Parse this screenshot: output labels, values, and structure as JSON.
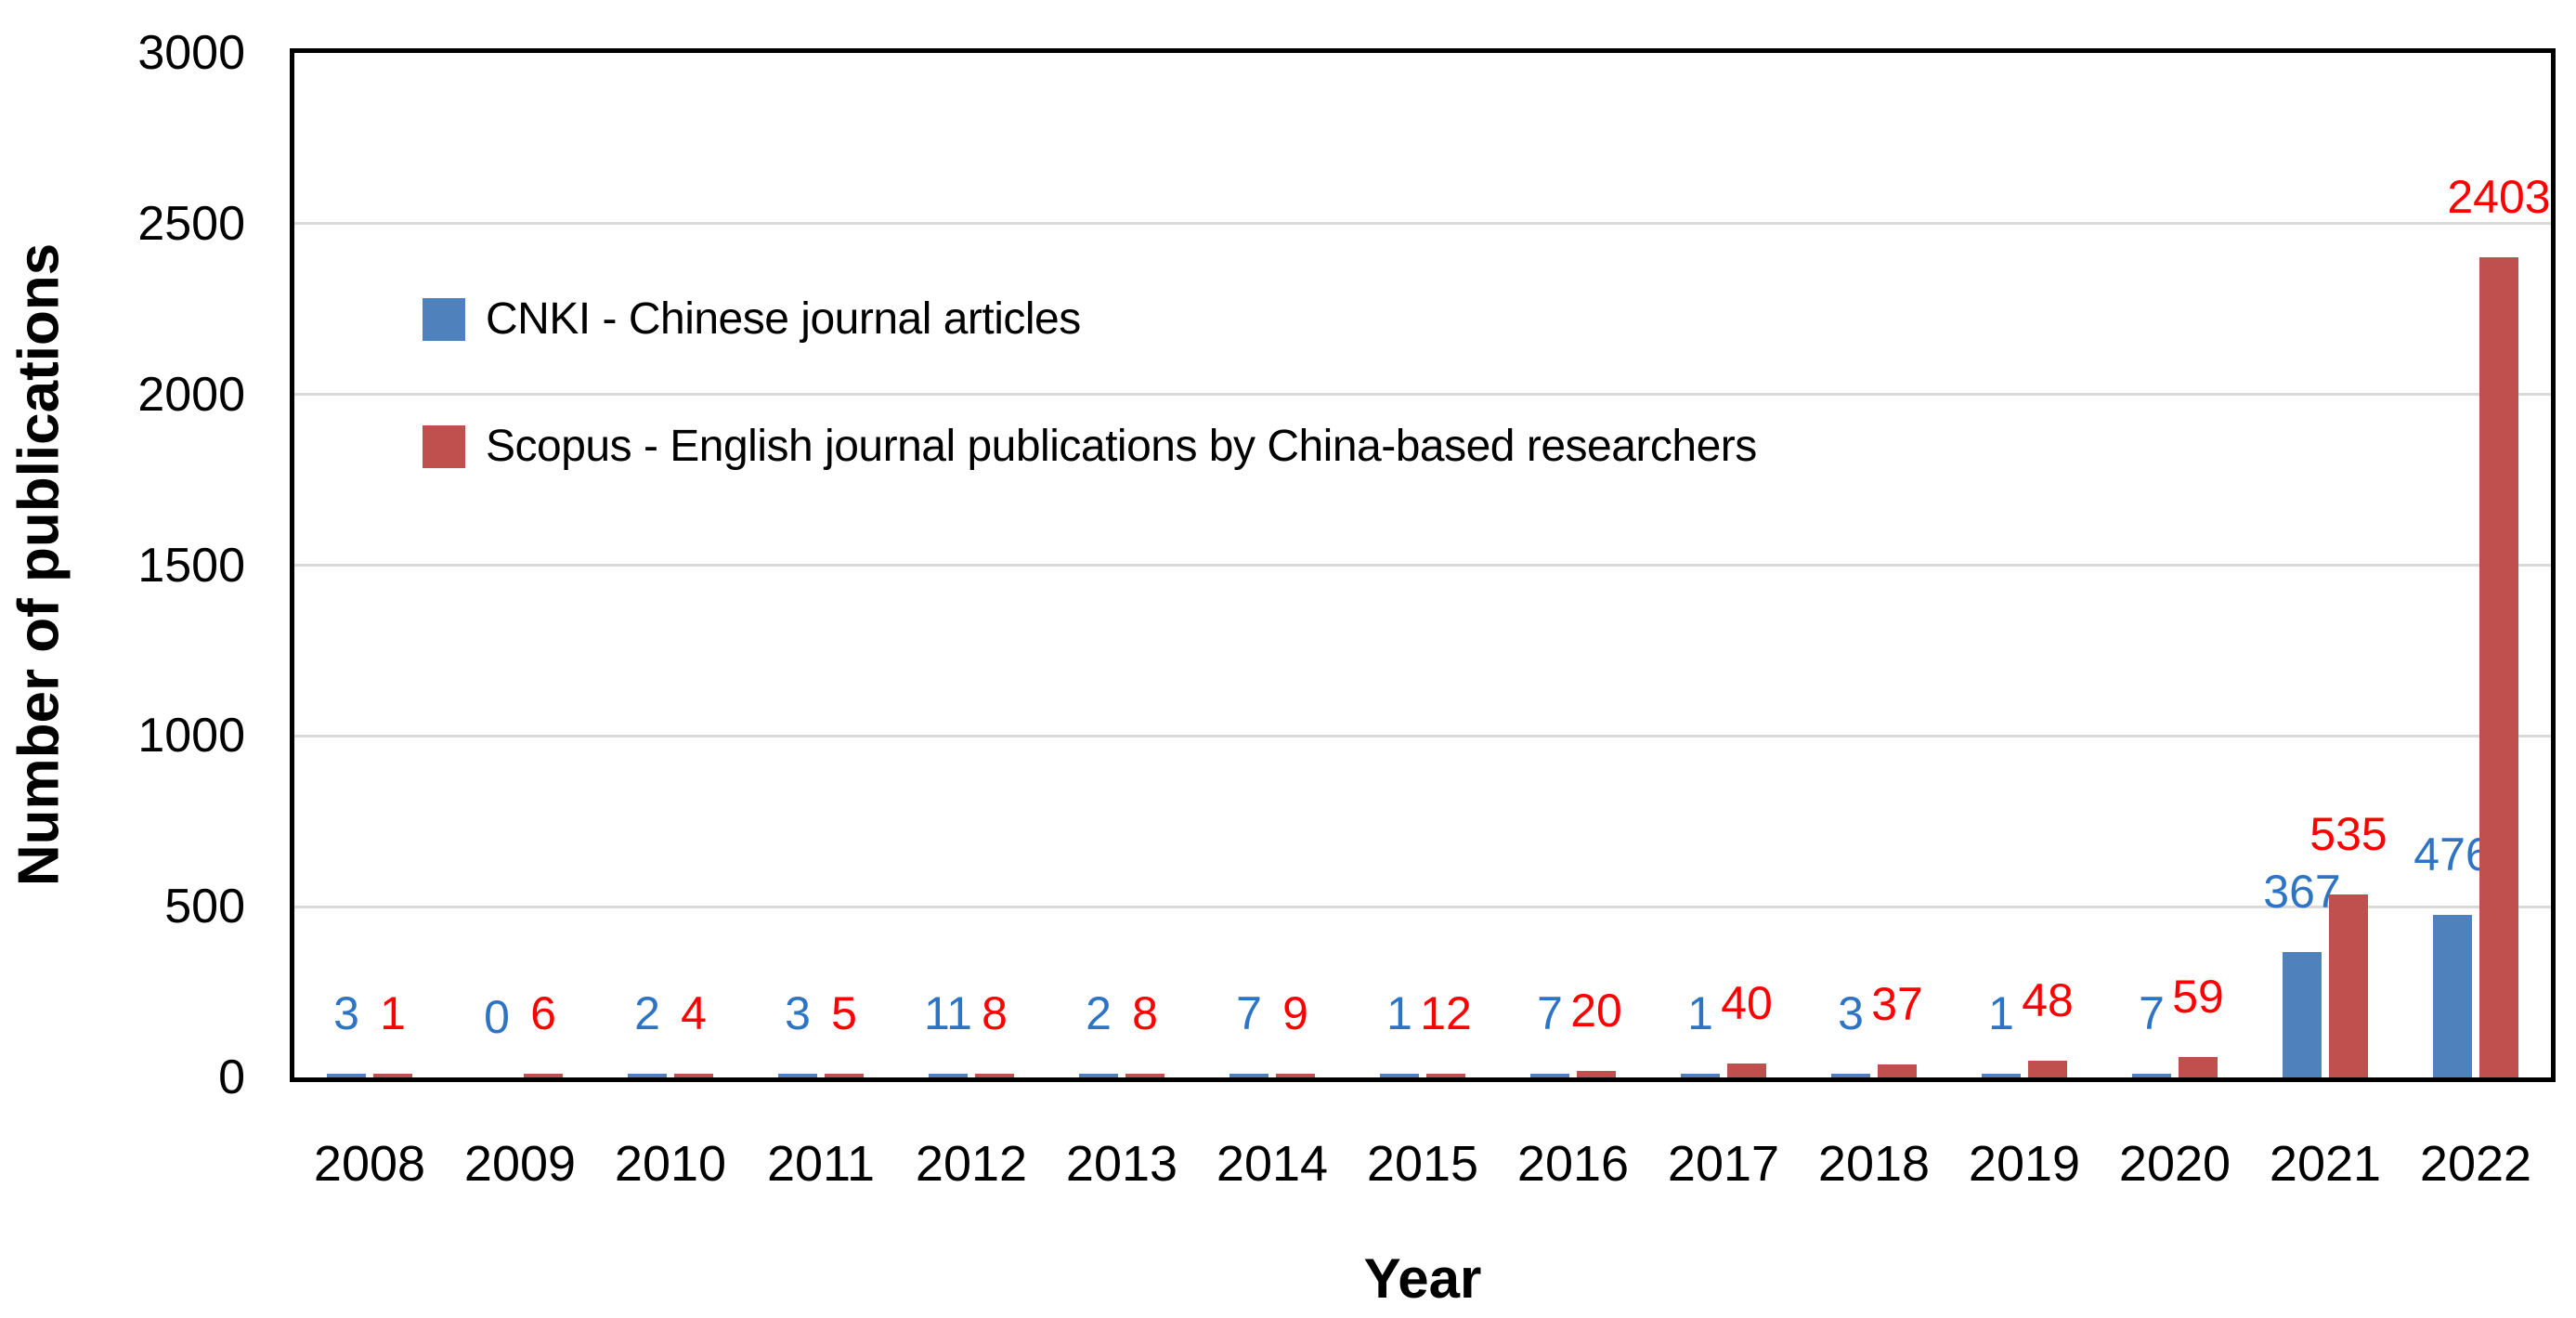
{
  "chart_data": {
    "type": "bar",
    "title": "",
    "xlabel": "Year",
    "ylabel": "Number of publications",
    "categories": [
      "2008",
      "2009",
      "2010",
      "2011",
      "2012",
      "2013",
      "2014",
      "2015",
      "2016",
      "2017",
      "2018",
      "2019",
      "2020",
      "2021",
      "2022"
    ],
    "series": [
      {
        "name": "CNKI - Chinese journal articles",
        "color": "#4F81BD",
        "label_color": "#2E74C4",
        "values": [
          3,
          0,
          2,
          3,
          11,
          2,
          7,
          1,
          7,
          1,
          3,
          1,
          7,
          367,
          476
        ]
      },
      {
        "name": "Scopus - English journal publications by China-based researchers",
        "color": "#C0504D",
        "label_color": "#FF0000",
        "values": [
          1,
          6,
          4,
          5,
          8,
          8,
          9,
          12,
          20,
          40,
          37,
          48,
          59,
          535,
          2403
        ]
      }
    ],
    "ylim": [
      0,
      3000
    ],
    "ytick_step": 500,
    "grid": true,
    "grid_color": "#D9D9D9",
    "axis_color": "#000000",
    "legend_position": "inside-top-left",
    "data_labels": true
  }
}
